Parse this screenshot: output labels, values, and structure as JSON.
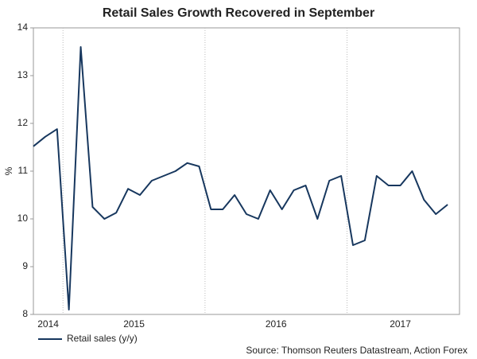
{
  "chart_data": {
    "type": "line",
    "title": "Retail Sales Growth Recovered in September",
    "y_label": "%",
    "source": "Source: Thomson Reuters Datastream, Action Forex",
    "x": [
      "2014-10",
      "2014-11",
      "2014-12",
      "2015-01",
      "2015-02",
      "2015-03",
      "2015-04",
      "2015-05",
      "2015-06",
      "2015-07",
      "2015-08",
      "2015-09",
      "2015-10",
      "2015-11",
      "2015-12",
      "2016-01",
      "2016-02",
      "2016-03",
      "2016-04",
      "2016-05",
      "2016-06",
      "2016-07",
      "2016-08",
      "2016-09",
      "2016-10",
      "2016-11",
      "2016-12",
      "2017-01",
      "2017-02",
      "2017-03",
      "2017-04",
      "2017-05",
      "2017-06",
      "2017-07",
      "2017-08",
      "2017-09"
    ],
    "series": [
      {
        "name": "Retail sales (y/y)",
        "color": "#17375e",
        "values": [
          11.52,
          11.72,
          11.88,
          8.1,
          13.6,
          10.25,
          10.0,
          10.13,
          10.63,
          10.5,
          10.8,
          10.9,
          11.0,
          11.17,
          11.1,
          10.2,
          10.2,
          10.5,
          10.1,
          10.0,
          10.6,
          10.2,
          10.6,
          10.7,
          10.0,
          10.8,
          10.9,
          9.45,
          9.55,
          10.9,
          10.7,
          10.7,
          11.0,
          10.4,
          10.1,
          10.3
        ]
      }
    ],
    "xlim": [
      "2014-10",
      "2017-10"
    ],
    "year_labels": [
      "2014",
      "2015",
      "2016",
      "2017"
    ],
    "xgrid": [
      "2015-01",
      "2016-01",
      "2017-01"
    ],
    "ylim": [
      8,
      14
    ],
    "yticks": [
      8,
      9,
      10,
      11,
      12,
      13,
      14
    ],
    "legend": "bottom-left"
  }
}
